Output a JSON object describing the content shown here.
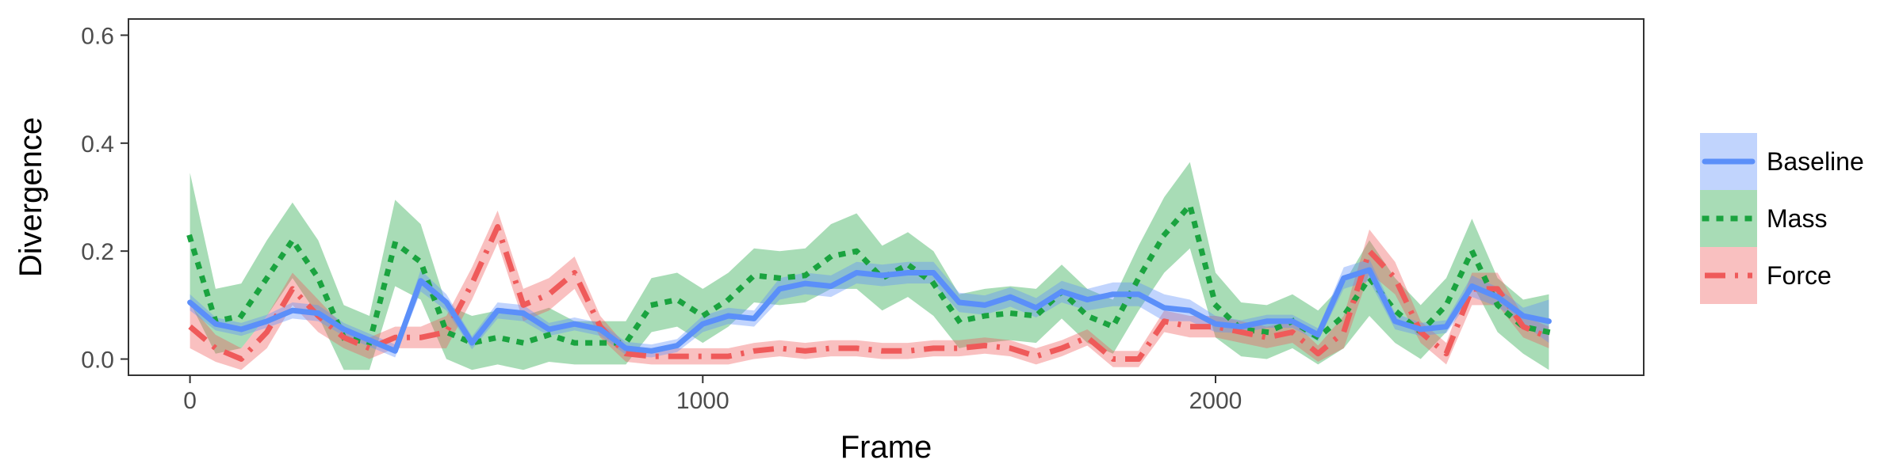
{
  "chart_data": {
    "type": "line",
    "xlabel": "Frame",
    "ylabel": "Divergence",
    "xlim": [
      -120,
      2835
    ],
    "ylim": [
      -0.03,
      0.63
    ],
    "x_ticks": [
      0,
      1000,
      2000
    ],
    "x_tick_labels": [
      "0",
      "1000",
      "2000"
    ],
    "y_ticks": [
      0.0,
      0.2,
      0.4,
      0.6
    ],
    "y_tick_labels": [
      "0.0",
      "0.2",
      "0.4",
      "0.6"
    ],
    "grid": false,
    "legend_position": "right",
    "series": [
      {
        "name": "Baseline",
        "color": "#5b8ff9",
        "line_style": "solid",
        "x": [
          0,
          50,
          100,
          150,
          200,
          250,
          300,
          350,
          400,
          450,
          500,
          550,
          600,
          650,
          700,
          750,
          800,
          850,
          900,
          950,
          1000,
          1050,
          1100,
          1150,
          1200,
          1250,
          1300,
          1350,
          1400,
          1450,
          1500,
          1550,
          1600,
          1650,
          1700,
          1750,
          1800,
          1850,
          1900,
          1950,
          2000,
          2050,
          2100,
          2150,
          2200,
          2250,
          2300,
          2350,
          2400,
          2450,
          2500,
          2550,
          2600,
          2650
        ],
        "y": [
          0.105,
          0.065,
          0.055,
          0.07,
          0.09,
          0.085,
          0.055,
          0.035,
          0.015,
          0.145,
          0.105,
          0.03,
          0.09,
          0.085,
          0.055,
          0.065,
          0.055,
          0.02,
          0.015,
          0.025,
          0.065,
          0.08,
          0.075,
          0.13,
          0.14,
          0.135,
          0.16,
          0.155,
          0.16,
          0.16,
          0.105,
          0.1,
          0.115,
          0.095,
          0.125,
          0.11,
          0.12,
          0.12,
          0.095,
          0.09,
          0.065,
          0.06,
          0.07,
          0.07,
          0.045,
          0.15,
          0.165,
          0.07,
          0.055,
          0.06,
          0.135,
          0.115,
          0.08,
          0.07
        ],
        "band": [
          0.015,
          0.012,
          0.012,
          0.012,
          0.015,
          0.015,
          0.012,
          0.012,
          0.012,
          0.02,
          0.015,
          0.012,
          0.015,
          0.015,
          0.012,
          0.012,
          0.012,
          0.012,
          0.012,
          0.012,
          0.015,
          0.015,
          0.015,
          0.02,
          0.02,
          0.02,
          0.02,
          0.02,
          0.02,
          0.02,
          0.018,
          0.018,
          0.018,
          0.018,
          0.02,
          0.02,
          0.022,
          0.022,
          0.025,
          0.02,
          0.015,
          0.012,
          0.012,
          0.012,
          0.012,
          0.02,
          0.02,
          0.015,
          0.012,
          0.012,
          0.02,
          0.018,
          0.015,
          0.04
        ]
      },
      {
        "name": "Mass",
        "color": "#1aa33f",
        "line_style": "dotted",
        "x": [
          0,
          50,
          100,
          150,
          200,
          250,
          300,
          350,
          400,
          450,
          500,
          550,
          600,
          650,
          700,
          750,
          800,
          850,
          900,
          950,
          1000,
          1050,
          1100,
          1150,
          1200,
          1250,
          1300,
          1350,
          1400,
          1450,
          1500,
          1550,
          1600,
          1650,
          1700,
          1750,
          1800,
          1850,
          1900,
          1950,
          2000,
          2050,
          2100,
          2150,
          2200,
          2250,
          2300,
          2350,
          2400,
          2450,
          2500,
          2550,
          2600,
          2650
        ],
        "y": [
          0.225,
          0.07,
          0.08,
          0.15,
          0.22,
          0.15,
          0.04,
          0.03,
          0.215,
          0.18,
          0.05,
          0.03,
          0.04,
          0.03,
          0.045,
          0.03,
          0.03,
          0.03,
          0.1,
          0.11,
          0.08,
          0.11,
          0.155,
          0.15,
          0.155,
          0.19,
          0.2,
          0.15,
          0.175,
          0.14,
          0.07,
          0.08,
          0.085,
          0.08,
          0.125,
          0.08,
          0.06,
          0.15,
          0.23,
          0.285,
          0.1,
          0.055,
          0.05,
          0.07,
          0.04,
          0.08,
          0.15,
          0.09,
          0.05,
          0.1,
          0.2,
          0.1,
          0.06,
          0.05
        ],
        "band": [
          0.12,
          0.06,
          0.06,
          0.07,
          0.07,
          0.07,
          0.06,
          0.05,
          0.08,
          0.07,
          0.05,
          0.05,
          0.05,
          0.05,
          0.05,
          0.04,
          0.04,
          0.04,
          0.05,
          0.05,
          0.05,
          0.05,
          0.05,
          0.05,
          0.05,
          0.06,
          0.07,
          0.06,
          0.06,
          0.06,
          0.05,
          0.05,
          0.05,
          0.05,
          0.05,
          0.05,
          0.05,
          0.06,
          0.07,
          0.08,
          0.06,
          0.05,
          0.05,
          0.05,
          0.05,
          0.06,
          0.07,
          0.06,
          0.05,
          0.05,
          0.06,
          0.05,
          0.05,
          0.07
        ]
      },
      {
        "name": "Force",
        "color": "#ef5a5a",
        "line_style": "dashdot",
        "x": [
          0,
          50,
          100,
          150,
          200,
          250,
          300,
          350,
          400,
          450,
          500,
          550,
          600,
          650,
          700,
          750,
          800,
          850,
          900,
          950,
          1000,
          1050,
          1100,
          1150,
          1200,
          1250,
          1300,
          1350,
          1400,
          1450,
          1500,
          1550,
          1600,
          1650,
          1700,
          1750,
          1800,
          1850,
          1900,
          1950,
          2000,
          2050,
          2100,
          2150,
          2200,
          2250,
          2300,
          2350,
          2400,
          2450,
          2500,
          2550,
          2600,
          2650
        ],
        "y": [
          0.06,
          0.02,
          0.0,
          0.05,
          0.13,
          0.08,
          0.04,
          0.02,
          0.04,
          0.04,
          0.05,
          0.14,
          0.245,
          0.1,
          0.12,
          0.16,
          0.06,
          0.01,
          0.005,
          0.005,
          0.005,
          0.005,
          0.015,
          0.02,
          0.015,
          0.02,
          0.02,
          0.015,
          0.015,
          0.02,
          0.02,
          0.025,
          0.02,
          0.005,
          0.02,
          0.04,
          0.0,
          0.0,
          0.07,
          0.06,
          0.06,
          0.05,
          0.04,
          0.05,
          0.01,
          0.05,
          0.2,
          0.15,
          0.05,
          0.01,
          0.13,
          0.13,
          0.06,
          0.04
        ],
        "band": [
          0.04,
          0.025,
          0.02,
          0.03,
          0.03,
          0.03,
          0.02,
          0.02,
          0.02,
          0.02,
          0.03,
          0.03,
          0.03,
          0.03,
          0.03,
          0.03,
          0.02,
          0.015,
          0.015,
          0.015,
          0.015,
          0.015,
          0.015,
          0.015,
          0.015,
          0.015,
          0.015,
          0.015,
          0.015,
          0.015,
          0.015,
          0.015,
          0.015,
          0.015,
          0.015,
          0.015,
          0.015,
          0.015,
          0.02,
          0.02,
          0.02,
          0.02,
          0.02,
          0.02,
          0.015,
          0.03,
          0.04,
          0.03,
          0.02,
          0.02,
          0.03,
          0.03,
          0.02,
          0.02
        ]
      }
    ],
    "draw_order": [
      "Mass",
      "Force",
      "Baseline"
    ]
  }
}
